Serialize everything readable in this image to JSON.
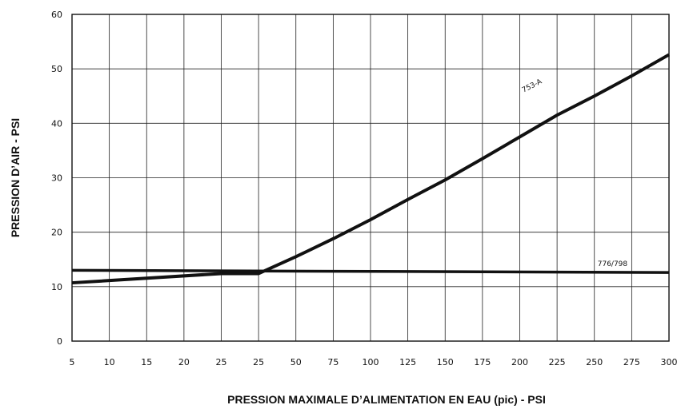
{
  "chart_data": {
    "type": "line",
    "xlabel": "PRESSION MAXIMALE D’ALIMENTATION EN EAU (pic) - PSI",
    "ylabel": "PRESSION D’AIR - PSI",
    "x_ticks": [
      "5",
      "10",
      "15",
      "20",
      "25",
      "25",
      "50",
      "75",
      "100",
      "125",
      "150",
      "175",
      "200",
      "225",
      "250",
      "275",
      "300"
    ],
    "y_ticks": [
      "0",
      "10",
      "20",
      "30",
      "40",
      "50",
      "60"
    ],
    "ylim": [
      0,
      60
    ],
    "grid": true,
    "series": [
      {
        "name": "753-A",
        "x": [
          "5",
          "25",
          "25",
          "50",
          "75",
          "100",
          "125",
          "150",
          "175",
          "200",
          "225",
          "250",
          "275",
          "300"
        ],
        "y": [
          10.7,
          12.4,
          12.4,
          15.5,
          18.8,
          22.3,
          26.0,
          29.6,
          33.5,
          37.5,
          41.5,
          45.0,
          48.7,
          52.6
        ]
      },
      {
        "name": "776/798",
        "x": [
          "5",
          "300"
        ],
        "y": [
          13.0,
          12.6
        ]
      }
    ]
  }
}
